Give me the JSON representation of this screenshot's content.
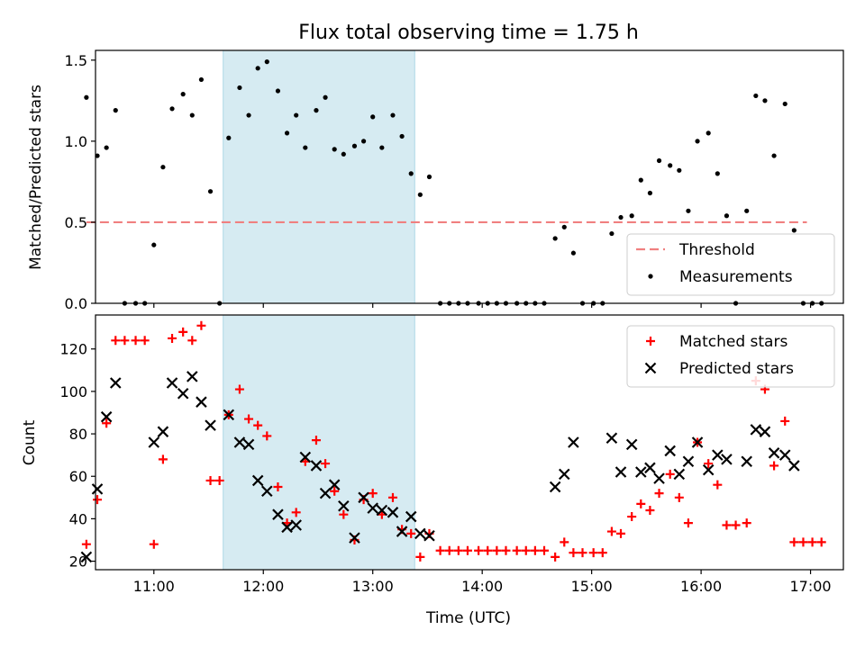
{
  "chart_data": [
    {
      "type": "scatter",
      "title": "Flux total observing time = 1.75 h",
      "xlabel": "",
      "ylabel": "Matched/Predicted stars",
      "xlim": [
        "10:28",
        "17:18"
      ],
      "ylim": [
        0,
        1.56
      ],
      "yticks": [
        0.0,
        0.5,
        1.0,
        1.5
      ],
      "ytick_labels": [
        "0.0",
        "0.5",
        "1.0",
        "1.5"
      ],
      "shaded_region": {
        "x": [
          "11:38",
          "13:23"
        ],
        "color": "#add8e6"
      },
      "legend": {
        "position": "lower-right",
        "entries": [
          "Threshold",
          "Measurements"
        ]
      },
      "series": [
        {
          "name": "Threshold",
          "kind": "dashed-line",
          "color": "#f08080",
          "x": [
            "10:23",
            "16:58"
          ],
          "y": [
            0.5,
            0.5
          ]
        },
        {
          "name": "Measurements",
          "kind": "dots",
          "color": "#000000",
          "points": [
            [
              "10:23",
              1.27
            ],
            [
              "10:29",
              0.91
            ],
            [
              "10:34",
              0.96
            ],
            [
              "10:39",
              1.19
            ],
            [
              "10:44",
              0.0
            ],
            [
              "10:50",
              0.0
            ],
            [
              "10:55",
              0.0
            ],
            [
              "11:00",
              0.36
            ],
            [
              "11:05",
              0.84
            ],
            [
              "11:10",
              1.2
            ],
            [
              "11:16",
              1.29
            ],
            [
              "11:21",
              1.16
            ],
            [
              "11:26",
              1.38
            ],
            [
              "11:31",
              0.69
            ],
            [
              "11:36",
              0.0
            ],
            [
              "11:41",
              1.02
            ],
            [
              "11:47",
              1.33
            ],
            [
              "11:52",
              1.16
            ],
            [
              "11:57",
              1.45
            ],
            [
              "12:02",
              1.49
            ],
            [
              "12:08",
              1.31
            ],
            [
              "12:13",
              1.05
            ],
            [
              "12:18",
              1.16
            ],
            [
              "12:23",
              0.96
            ],
            [
              "12:29",
              1.19
            ],
            [
              "12:34",
              1.27
            ],
            [
              "12:39",
              0.95
            ],
            [
              "12:44",
              0.92
            ],
            [
              "12:50",
              0.97
            ],
            [
              "12:55",
              1.0
            ],
            [
              "13:00",
              1.15
            ],
            [
              "13:05",
              0.96
            ],
            [
              "13:11",
              1.16
            ],
            [
              "13:16",
              1.03
            ],
            [
              "13:21",
              0.8
            ],
            [
              "13:26",
              0.67
            ],
            [
              "13:31",
              0.78
            ],
            [
              "13:37",
              0.0
            ],
            [
              "13:42",
              0.0
            ],
            [
              "13:47",
              0.0
            ],
            [
              "13:52",
              0.0
            ],
            [
              "13:58",
              0.0
            ],
            [
              "14:03",
              0.0
            ],
            [
              "14:08",
              0.0
            ],
            [
              "14:13",
              0.0
            ],
            [
              "14:19",
              0.0
            ],
            [
              "14:24",
              0.0
            ],
            [
              "14:29",
              0.0
            ],
            [
              "14:34",
              0.0
            ],
            [
              "14:40",
              0.4
            ],
            [
              "14:45",
              0.47
            ],
            [
              "14:50",
              0.31
            ],
            [
              "14:55",
              0.0
            ],
            [
              "15:01",
              0.0
            ],
            [
              "15:06",
              0.0
            ],
            [
              "15:11",
              0.43
            ],
            [
              "15:16",
              0.53
            ],
            [
              "15:22",
              0.54
            ],
            [
              "15:27",
              0.76
            ],
            [
              "15:32",
              0.68
            ],
            [
              "15:37",
              0.88
            ],
            [
              "15:43",
              0.85
            ],
            [
              "15:48",
              0.82
            ],
            [
              "15:53",
              0.57
            ],
            [
              "15:58",
              1.0
            ],
            [
              "16:04",
              1.05
            ],
            [
              "16:09",
              0.8
            ],
            [
              "16:14",
              0.54
            ],
            [
              "16:19",
              0.0
            ],
            [
              "16:25",
              0.57
            ],
            [
              "16:30",
              1.28
            ],
            [
              "16:35",
              1.25
            ],
            [
              "16:40",
              0.91
            ],
            [
              "16:46",
              1.23
            ],
            [
              "16:51",
              0.45
            ],
            [
              "16:56",
              0.0
            ],
            [
              "17:01",
              0.0
            ],
            [
              "17:06",
              0.0
            ]
          ]
        }
      ]
    },
    {
      "type": "scatter",
      "title": "",
      "xlabel": "Time (UTC)",
      "ylabel": "Count",
      "xlim": [
        "10:28",
        "17:18"
      ],
      "ylim": [
        16,
        136
      ],
      "yticks": [
        20,
        40,
        60,
        80,
        100,
        120
      ],
      "ytick_labels": [
        "20",
        "40",
        "60",
        "80",
        "100",
        "120"
      ],
      "xticks": [
        "11:00",
        "12:00",
        "13:00",
        "14:00",
        "15:00",
        "16:00",
        "17:00"
      ],
      "xtick_labels": [
        "11:00",
        "12:00",
        "13:00",
        "14:00",
        "15:00",
        "16:00",
        "17:00"
      ],
      "shaded_region": {
        "x": [
          "11:38",
          "13:23"
        ],
        "color": "#add8e6"
      },
      "legend": {
        "position": "upper-right",
        "entries": [
          "Matched stars",
          "Predicted stars"
        ]
      },
      "series": [
        {
          "name": "Matched stars",
          "marker": "plus",
          "color": "#ff0000",
          "points": [
            [
              "10:23",
              28
            ],
            [
              "10:29",
              49
            ],
            [
              "10:34",
              85
            ],
            [
              "10:39",
              124
            ],
            [
              "10:44",
              124
            ],
            [
              "10:50",
              124
            ],
            [
              "10:55",
              124
            ],
            [
              "11:00",
              28
            ],
            [
              "11:05",
              68
            ],
            [
              "11:10",
              125
            ],
            [
              "11:16",
              128
            ],
            [
              "11:21",
              124
            ],
            [
              "11:26",
              131
            ],
            [
              "11:31",
              58
            ],
            [
              "11:36",
              58
            ],
            [
              "11:41",
              89
            ],
            [
              "11:47",
              101
            ],
            [
              "11:52",
              87
            ],
            [
              "11:57",
              84
            ],
            [
              "12:02",
              79
            ],
            [
              "12:08",
              55
            ],
            [
              "12:13",
              38
            ],
            [
              "12:18",
              43
            ],
            [
              "12:23",
              67
            ],
            [
              "12:29",
              77
            ],
            [
              "12:34",
              66
            ],
            [
              "12:39",
              53
            ],
            [
              "12:44",
              42
            ],
            [
              "12:50",
              30
            ],
            [
              "12:55",
              49
            ],
            [
              "13:00",
              52
            ],
            [
              "13:05",
              42
            ],
            [
              "13:11",
              50
            ],
            [
              "13:16",
              35
            ],
            [
              "13:21",
              33
            ],
            [
              "13:26",
              22
            ],
            [
              "13:31",
              33
            ],
            [
              "13:37",
              25
            ],
            [
              "13:42",
              25
            ],
            [
              "13:47",
              25
            ],
            [
              "13:52",
              25
            ],
            [
              "13:58",
              25
            ],
            [
              "14:03",
              25
            ],
            [
              "14:08",
              25
            ],
            [
              "14:13",
              25
            ],
            [
              "14:19",
              25
            ],
            [
              "14:24",
              25
            ],
            [
              "14:29",
              25
            ],
            [
              "14:34",
              25
            ],
            [
              "14:40",
              22
            ],
            [
              "14:45",
              29
            ],
            [
              "14:50",
              24
            ],
            [
              "14:55",
              24
            ],
            [
              "15:01",
              24
            ],
            [
              "15:06",
              24
            ],
            [
              "15:11",
              34
            ],
            [
              "15:16",
              33
            ],
            [
              "15:22",
              41
            ],
            [
              "15:27",
              47
            ],
            [
              "15:32",
              44
            ],
            [
              "15:37",
              52
            ],
            [
              "15:43",
              61
            ],
            [
              "15:48",
              50
            ],
            [
              "15:53",
              38
            ],
            [
              "15:58",
              76
            ],
            [
              "16:04",
              66
            ],
            [
              "16:09",
              56
            ],
            [
              "16:14",
              37
            ],
            [
              "16:19",
              37
            ],
            [
              "16:25",
              38
            ],
            [
              "16:30",
              105
            ],
            [
              "16:35",
              101
            ],
            [
              "16:40",
              65
            ],
            [
              "16:46",
              86
            ],
            [
              "16:51",
              29
            ],
            [
              "16:56",
              29
            ],
            [
              "17:01",
              29
            ],
            [
              "17:06",
              29
            ]
          ]
        },
        {
          "name": "Predicted stars",
          "marker": "x",
          "color": "#000000",
          "points": [
            [
              "10:23",
              22
            ],
            [
              "10:29",
              54
            ],
            [
              "10:34",
              88
            ],
            [
              "10:39",
              104
            ],
            [
              "11:00",
              76
            ],
            [
              "11:05",
              81
            ],
            [
              "11:10",
              104
            ],
            [
              "11:16",
              99
            ],
            [
              "11:21",
              107
            ],
            [
              "11:26",
              95
            ],
            [
              "11:31",
              84
            ],
            [
              "11:41",
              89
            ],
            [
              "11:47",
              76
            ],
            [
              "11:52",
              75
            ],
            [
              "11:57",
              58
            ],
            [
              "12:02",
              53
            ],
            [
              "12:08",
              42
            ],
            [
              "12:13",
              36
            ],
            [
              "12:18",
              37
            ],
            [
              "12:23",
              69
            ],
            [
              "12:29",
              65
            ],
            [
              "12:34",
              52
            ],
            [
              "12:39",
              56
            ],
            [
              "12:44",
              46
            ],
            [
              "12:50",
              31
            ],
            [
              "12:55",
              50
            ],
            [
              "13:00",
              45
            ],
            [
              "13:05",
              44
            ],
            [
              "13:11",
              43
            ],
            [
              "13:16",
              34
            ],
            [
              "13:21",
              41
            ],
            [
              "13:26",
              33
            ],
            [
              "13:31",
              32
            ],
            [
              "14:40",
              55
            ],
            [
              "14:45",
              61
            ],
            [
              "14:50",
              76
            ],
            [
              "15:11",
              78
            ],
            [
              "15:16",
              62
            ],
            [
              "15:22",
              75
            ],
            [
              "15:27",
              62
            ],
            [
              "15:32",
              64
            ],
            [
              "15:37",
              59
            ],
            [
              "15:43",
              72
            ],
            [
              "15:48",
              61
            ],
            [
              "15:53",
              67
            ],
            [
              "15:58",
              76
            ],
            [
              "16:04",
              63
            ],
            [
              "16:09",
              70
            ],
            [
              "16:14",
              68
            ],
            [
              "16:25",
              67
            ],
            [
              "16:30",
              82
            ],
            [
              "16:35",
              81
            ],
            [
              "16:40",
              71
            ],
            [
              "16:46",
              70
            ],
            [
              "16:51",
              65
            ]
          ]
        }
      ]
    }
  ]
}
